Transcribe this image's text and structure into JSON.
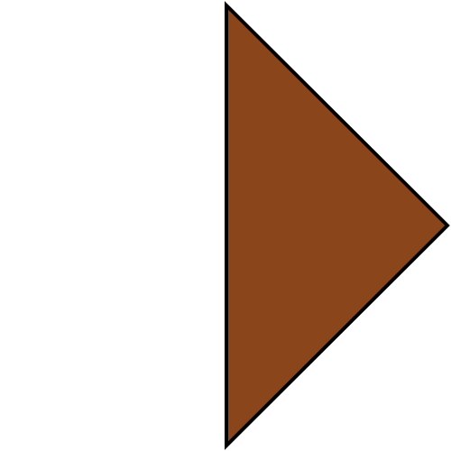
{
  "shape": {
    "kind": "triangle",
    "pointing": "right",
    "fill_color": "#8B451A",
    "stroke_color": "#000000",
    "background_color": "#ffffff"
  }
}
